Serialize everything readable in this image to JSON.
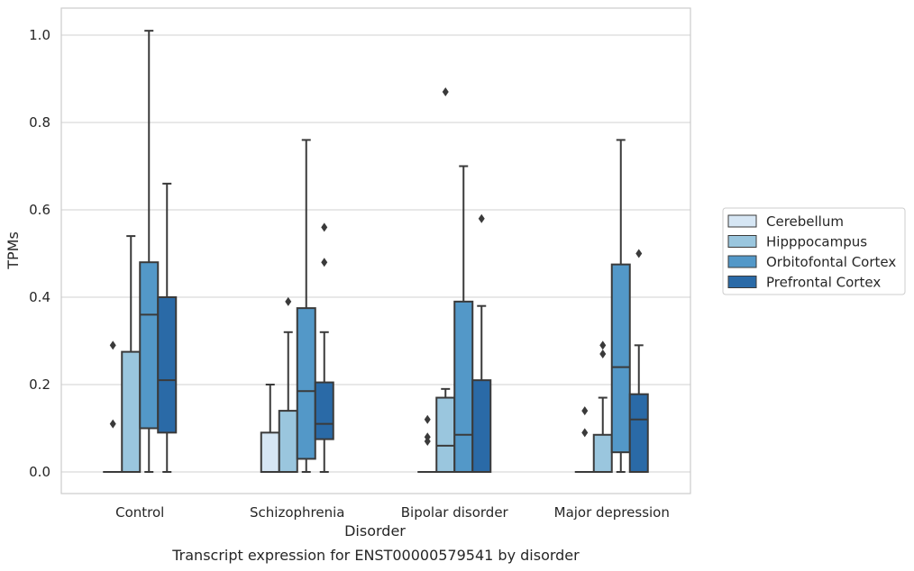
{
  "chart_data": {
    "type": "box",
    "xlabel": "Disorder",
    "ylabel": "TPMs",
    "caption": "Transcript expression for ENST00000579541 by disorder",
    "ylim": [
      -0.05,
      1.06
    ],
    "yticks": [
      "0.0",
      "0.2",
      "0.4",
      "0.6",
      "0.8",
      "1.0"
    ],
    "grid": true,
    "legend_position": "right",
    "categories": [
      "Control",
      "Schizophrenia",
      "Bipolar disorder",
      "Major depression"
    ],
    "series": [
      {
        "name": "Cerebellum",
        "color": "#d6e6f4",
        "boxes": [
          {
            "whislo": 0,
            "q1": 0,
            "med": 0,
            "q3": 0,
            "whishi": 0,
            "fliers": [
              0.11,
              0.29
            ]
          },
          {
            "whislo": 0,
            "q1": 0,
            "med": 0,
            "q3": 0.09,
            "whishi": 0.2,
            "fliers": []
          },
          {
            "whislo": 0,
            "q1": 0,
            "med": 0,
            "q3": 0,
            "whishi": 0,
            "fliers": [
              0.07,
              0.08,
              0.12
            ]
          },
          {
            "whislo": 0,
            "q1": 0,
            "med": 0,
            "q3": 0,
            "whishi": 0,
            "fliers": [
              0.09,
              0.14
            ]
          }
        ]
      },
      {
        "name": "Hipppocampus",
        "color": "#9ac6de",
        "boxes": [
          {
            "whislo": 0,
            "q1": 0,
            "med": 0,
            "q3": 0.275,
            "whishi": 0.54,
            "fliers": []
          },
          {
            "whislo": 0,
            "q1": 0,
            "med": 0,
            "q3": 0.14,
            "whishi": 0.32,
            "fliers": [
              0.39
            ]
          },
          {
            "whislo": 0,
            "q1": 0,
            "med": 0.06,
            "q3": 0.17,
            "whishi": 0.19,
            "fliers": [
              0.87
            ]
          },
          {
            "whislo": 0,
            "q1": 0,
            "med": 0,
            "q3": 0.085,
            "whishi": 0.17,
            "fliers": [
              0.27,
              0.29
            ]
          }
        ]
      },
      {
        "name": "Orbitofontal Cortex",
        "color": "#5398c8",
        "boxes": [
          {
            "whislo": 0,
            "q1": 0.1,
            "med": 0.36,
            "q3": 0.48,
            "whishi": 1.01,
            "fliers": []
          },
          {
            "whislo": 0,
            "q1": 0.03,
            "med": 0.185,
            "q3": 0.375,
            "whishi": 0.76,
            "fliers": []
          },
          {
            "whislo": 0,
            "q1": 0,
            "med": 0.085,
            "q3": 0.39,
            "whishi": 0.7,
            "fliers": []
          },
          {
            "whislo": 0,
            "q1": 0.045,
            "med": 0.24,
            "q3": 0.475,
            "whishi": 0.76,
            "fliers": []
          }
        ]
      },
      {
        "name": "Prefrontal Cortex",
        "color": "#2a6aa7",
        "boxes": [
          {
            "whislo": 0,
            "q1": 0.09,
            "med": 0.21,
            "q3": 0.4,
            "whishi": 0.66,
            "fliers": []
          },
          {
            "whislo": 0,
            "q1": 0.075,
            "med": 0.11,
            "q3": 0.205,
            "whishi": 0.32,
            "fliers": [
              0.48,
              0.56
            ]
          },
          {
            "whislo": 0,
            "q1": 0,
            "med": 0,
            "q3": 0.21,
            "whishi": 0.38,
            "fliers": [
              0.58
            ]
          },
          {
            "whislo": 0,
            "q1": 0,
            "med": 0.12,
            "q3": 0.178,
            "whishi": 0.29,
            "fliers": [
              0.5
            ]
          }
        ]
      }
    ]
  }
}
